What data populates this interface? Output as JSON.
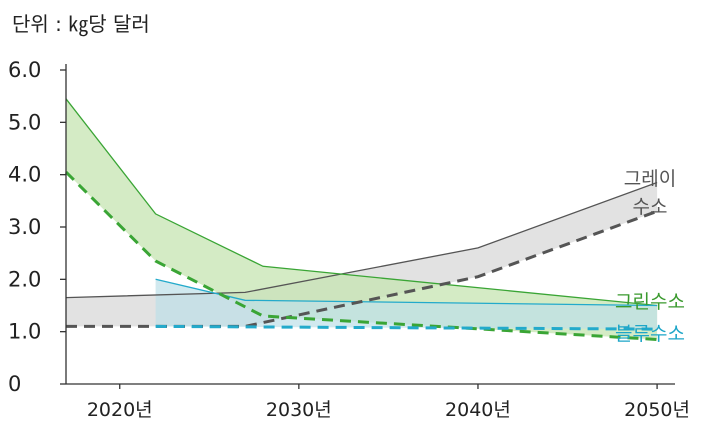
{
  "chart_data": {
    "type": "area",
    "unit_label": "단위 : ㎏당 달러",
    "ylim": [
      0,
      6.0
    ],
    "xlim": [
      2017,
      2051
    ],
    "y_ticks": [
      "6.0",
      "5.0",
      "4.0",
      "3.0",
      "2.0",
      "1.0",
      "0"
    ],
    "y_tick_values": [
      6,
      5,
      4,
      3,
      2,
      1,
      0
    ],
    "x_ticks": [
      "2020년",
      "2030년",
      "2040년",
      "2050년"
    ],
    "x_tick_values": [
      2020,
      2030,
      2040,
      2050
    ],
    "series": [
      {
        "name": "그레이 수소",
        "label_lines": [
          "그레이",
          "수소"
        ],
        "color": "#e0e0e0",
        "line_color": "#555555",
        "upper": {
          "x": [
            2017,
            2027,
            2040,
            2050
          ],
          "y": [
            1.65,
            1.75,
            2.6,
            3.85
          ]
        },
        "lower": {
          "x": [
            2017,
            2027,
            2040,
            2050
          ],
          "y": [
            1.1,
            1.1,
            2.05,
            3.3
          ]
        }
      },
      {
        "name": "그린수소",
        "label_lines": [
          "그린수소"
        ],
        "color": "#c6e4b2",
        "line_color": "#3aa535",
        "upper": {
          "x": [
            2017,
            2022,
            2028,
            2050
          ],
          "y": [
            5.45,
            3.25,
            2.25,
            1.5
          ]
        },
        "lower": {
          "x": [
            2017,
            2022,
            2028,
            2050
          ],
          "y": [
            4.05,
            2.35,
            1.3,
            0.85
          ]
        }
      },
      {
        "name": "블루수소",
        "label_lines": [
          "블루수소"
        ],
        "color": "#bde0e8",
        "line_color": "#23aacb",
        "upper": {
          "x": [
            2022,
            2027,
            2050
          ],
          "y": [
            2.0,
            1.6,
            1.5
          ]
        },
        "lower": {
          "x": [
            2022,
            2050
          ],
          "y": [
            1.1,
            1.05
          ]
        }
      }
    ]
  }
}
